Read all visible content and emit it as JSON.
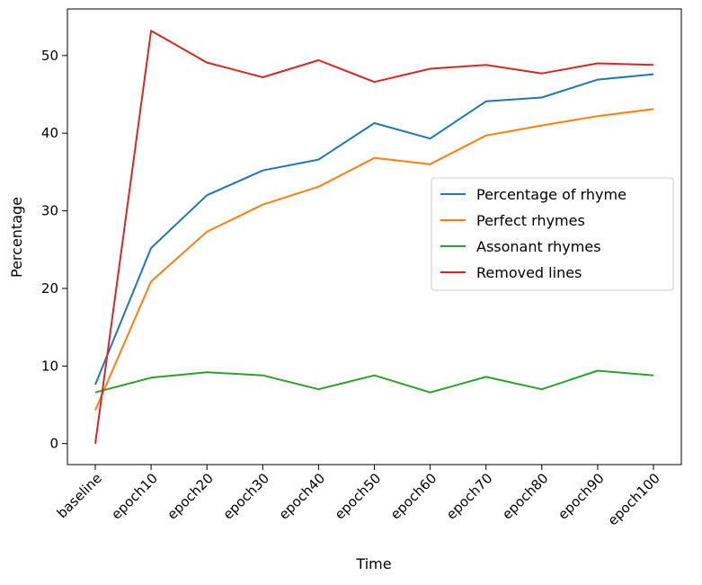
{
  "chart_data": {
    "type": "line",
    "title": "",
    "xlabel": "Time",
    "ylabel": "Percentage",
    "categories": [
      "baseline",
      "epoch10",
      "epoch20",
      "epoch30",
      "epoch40",
      "epoch50",
      "epoch60",
      "epoch70",
      "epoch80",
      "epoch90",
      "epoch100"
    ],
    "yticks": [
      0,
      10,
      20,
      30,
      40,
      50
    ],
    "ylim": [
      -2.7,
      56.0
    ],
    "grid": false,
    "legend_position": "center-right",
    "series": [
      {
        "name": "Percentage of rhyme",
        "color": "#1f77b4",
        "values": [
          7.6,
          25.2,
          32.0,
          35.2,
          36.6,
          41.3,
          39.3,
          44.1,
          44.6,
          46.9,
          47.6
        ]
      },
      {
        "name": "Perfect rhymes",
        "color": "#ff7f0e",
        "values": [
          4.3,
          20.9,
          27.3,
          30.8,
          33.1,
          36.8,
          36.0,
          39.7,
          41.0,
          42.2,
          43.1
        ]
      },
      {
        "name": "Assonant rhymes",
        "color": "#2ca02c",
        "values": [
          6.6,
          8.5,
          9.2,
          8.8,
          7.0,
          8.8,
          6.6,
          8.6,
          7.0,
          9.4,
          8.8
        ]
      },
      {
        "name": "Removed lines",
        "color": "#d62728",
        "values": [
          0.0,
          53.2,
          49.1,
          47.2,
          49.4,
          46.6,
          48.3,
          48.8,
          47.7,
          49.0,
          48.8
        ]
      }
    ]
  }
}
